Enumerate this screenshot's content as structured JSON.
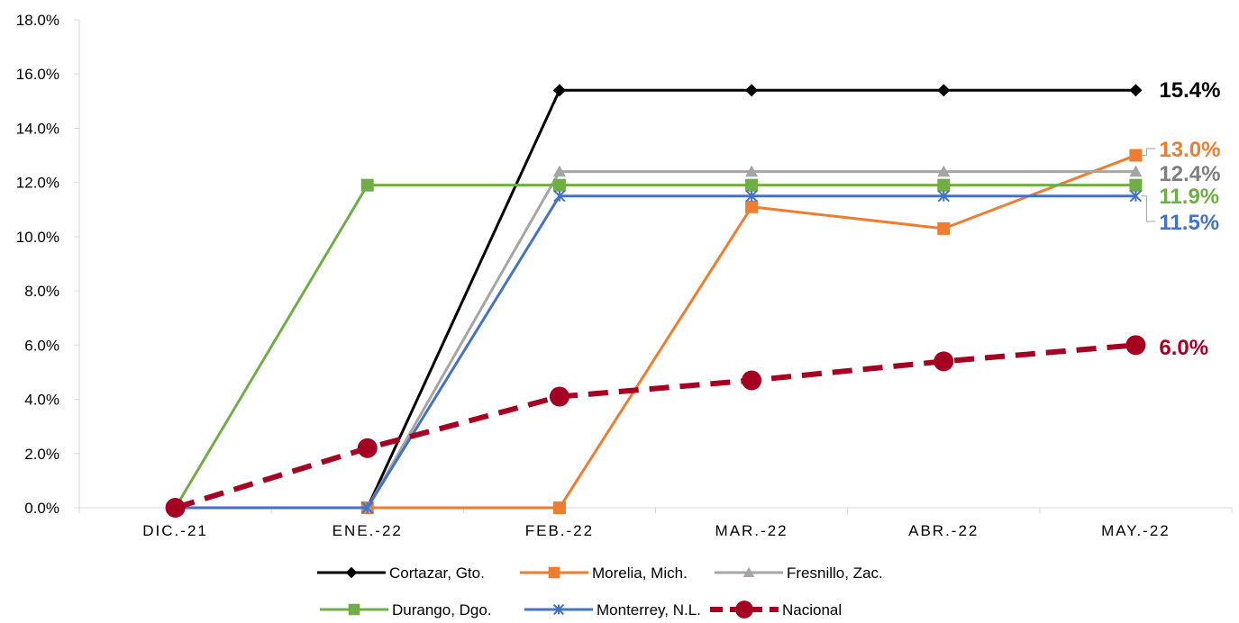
{
  "chart_data": {
    "type": "line",
    "categories": [
      "DIC.-21",
      "ENE.-22",
      "FEB.-22",
      "MAR.-22",
      "ABR.-22",
      "MAY.-22"
    ],
    "ylim": [
      0,
      18
    ],
    "yticks": [
      0,
      2,
      4,
      6,
      8,
      10,
      12,
      14,
      16,
      18
    ],
    "ytick_labels": [
      "0.0%",
      "2.0%",
      "4.0%",
      "6.0%",
      "8.0%",
      "10.0%",
      "12.0%",
      "14.0%",
      "16.0%",
      "18.0%"
    ],
    "grid": false,
    "legend_position": "bottom",
    "series": [
      {
        "name": "Cortazar, Gto.",
        "color": "#000000",
        "marker": "diamond",
        "dashed": false,
        "values": [
          null,
          0.0,
          15.4,
          15.4,
          15.4,
          15.4
        ],
        "end_label": "15.4%"
      },
      {
        "name": "Morelia, Mich.",
        "color": "#ED7D31",
        "marker": "square",
        "dashed": false,
        "values": [
          null,
          0.0,
          0.0,
          11.1,
          10.3,
          13.0
        ],
        "end_label": "13.0%"
      },
      {
        "name": "Fresnillo, Zac.",
        "color": "#A5A5A5",
        "marker": "triangle",
        "dashed": false,
        "values": [
          null,
          0.0,
          12.4,
          12.4,
          12.4,
          12.4
        ],
        "end_label": "12.4%"
      },
      {
        "name": "Durango, Dgo.",
        "color": "#70AD47",
        "marker": "square",
        "dashed": false,
        "values": [
          0.0,
          11.9,
          11.9,
          11.9,
          11.9,
          11.9
        ],
        "end_label": "11.9%"
      },
      {
        "name": "Monterrey, N.L.",
        "color": "#4472C4",
        "marker": "star",
        "dashed": false,
        "values": [
          0.0,
          0.0,
          11.5,
          11.5,
          11.5,
          11.5
        ],
        "end_label": "11.5%"
      },
      {
        "name": "Nacional",
        "color": "#A50021",
        "marker": "circle",
        "dashed": true,
        "values": [
          0.0,
          2.2,
          4.1,
          4.7,
          5.4,
          6.0
        ],
        "end_label": "6.0%"
      }
    ]
  }
}
